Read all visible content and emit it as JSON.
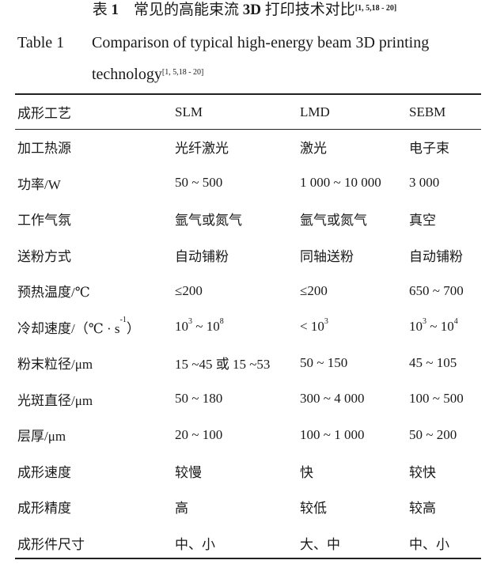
{
  "caption": {
    "cn_label": "表",
    "cn_num": "1",
    "cn_title_a": "常见的高能束流",
    "cn_title_bold": "3D",
    "cn_title_b": "打印技术对比",
    "cn_refs": "[1, 5,18 - 20]",
    "en_label": "Table 1",
    "en_title_line1": "Comparison of typical high-energy beam 3D printing",
    "en_title_line2": "technology",
    "en_refs": "[1, 5,18 - 20]"
  },
  "table": {
    "headers": [
      "成形工艺",
      "SLM",
      "LMD",
      "SEBM"
    ],
    "rows": [
      [
        [
          {
            "t": "加工热源"
          }
        ],
        [
          {
            "t": "光纤激光"
          }
        ],
        [
          {
            "t": "激光"
          }
        ],
        [
          {
            "t": "电子束"
          }
        ]
      ],
      [
        [
          {
            "t": "功率/W"
          }
        ],
        [
          {
            "t": "50 ~ 500"
          }
        ],
        [
          {
            "t": "1 000 ~ 10 000"
          }
        ],
        [
          {
            "t": "3 000"
          }
        ]
      ],
      [
        [
          {
            "t": "工作气氛"
          }
        ],
        [
          {
            "t": "氩气或氮气"
          }
        ],
        [
          {
            "t": "氩气或氮气"
          }
        ],
        [
          {
            "t": "真空"
          }
        ]
      ],
      [
        [
          {
            "t": "送粉方式"
          }
        ],
        [
          {
            "t": "自动铺粉"
          }
        ],
        [
          {
            "t": "同轴送粉"
          }
        ],
        [
          {
            "t": "自动铺粉"
          }
        ]
      ],
      [
        [
          {
            "t": "预热温度/℃"
          }
        ],
        [
          {
            "t": "≤200"
          }
        ],
        [
          {
            "t": "≤200"
          }
        ],
        [
          {
            "t": "650 ~ 700"
          }
        ]
      ],
      [
        [
          {
            "t": "冷却速度/（℃ · s"
          },
          {
            "t": "-1",
            "sup": true
          },
          {
            "t": "）"
          }
        ],
        [
          {
            "t": "10"
          },
          {
            "t": "3",
            "sup": true
          },
          {
            "t": " ~ 10"
          },
          {
            "t": "8",
            "sup": true
          }
        ],
        [
          {
            "t": " < 10"
          },
          {
            "t": "3",
            "sup": true
          }
        ],
        [
          {
            "t": "10"
          },
          {
            "t": "3",
            "sup": true
          },
          {
            "t": " ~ 10"
          },
          {
            "t": "4",
            "sup": true
          }
        ]
      ],
      [
        [
          {
            "t": "粉末粒径/μm"
          }
        ],
        [
          {
            "t": "15 ~45 或 15 ~53"
          }
        ],
        [
          {
            "t": "50 ~ 150"
          }
        ],
        [
          {
            "t": "45 ~ 105"
          }
        ]
      ],
      [
        [
          {
            "t": "光斑直径/μm"
          }
        ],
        [
          {
            "t": "50 ~ 180"
          }
        ],
        [
          {
            "t": "300 ~ 4 000"
          }
        ],
        [
          {
            "t": "100 ~ 500"
          }
        ]
      ],
      [
        [
          {
            "t": "层厚/μm"
          }
        ],
        [
          {
            "t": "20 ~ 100"
          }
        ],
        [
          {
            "t": "100 ~ 1 000"
          }
        ],
        [
          {
            "t": "50 ~ 200"
          }
        ]
      ],
      [
        [
          {
            "t": "成形速度"
          }
        ],
        [
          {
            "t": "较慢"
          }
        ],
        [
          {
            "t": "快"
          }
        ],
        [
          {
            "t": "较快"
          }
        ]
      ],
      [
        [
          {
            "t": "成形精度"
          }
        ],
        [
          {
            "t": "高"
          }
        ],
        [
          {
            "t": "较低"
          }
        ],
        [
          {
            "t": "较高"
          }
        ]
      ],
      [
        [
          {
            "t": "成形件尺寸"
          }
        ],
        [
          {
            "t": "中、小"
          }
        ],
        [
          {
            "t": "大、中"
          }
        ],
        [
          {
            "t": "中、小"
          }
        ]
      ]
    ]
  }
}
